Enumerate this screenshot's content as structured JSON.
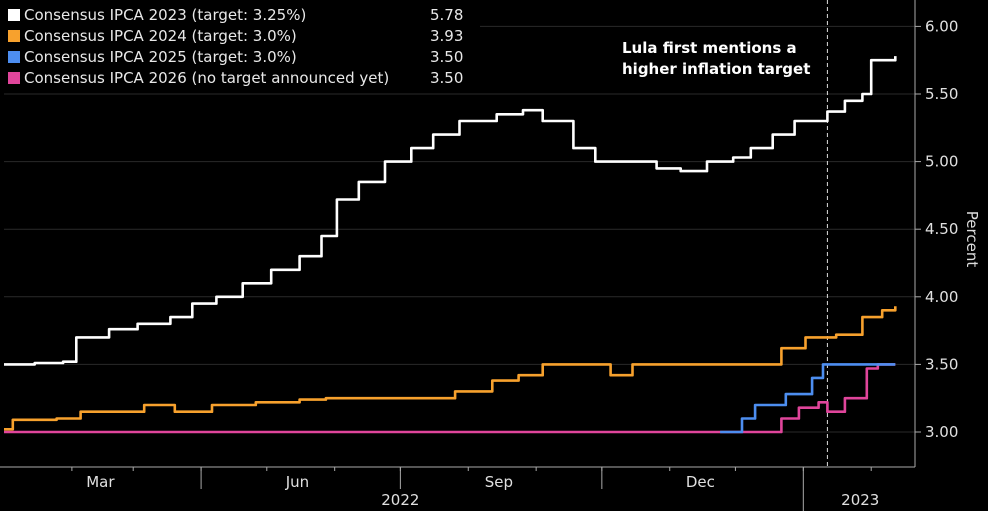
{
  "chart_data": {
    "type": "line",
    "ylabel": "Percent",
    "ylim": [
      2.75,
      6.2
    ],
    "y_ticks": [
      "3.00",
      "3.50",
      "4.00",
      "4.50",
      "5.00",
      "5.50",
      "6.00"
    ],
    "x_ticks": [
      "Mar",
      "Jun",
      "Sep",
      "Dec"
    ],
    "year_labels": [
      "2022",
      "2023"
    ],
    "annotation": "Lula first mentions a\nhigher inflation target",
    "event_date": "2023-01-12",
    "legend_position": "top-left",
    "series": [
      {
        "name": "Consensus IPCA 2023 (target: 3.25%)",
        "last": "5.78",
        "color": "#ffffff",
        "points": [
          [
            "2022-01-01",
            3.5
          ],
          [
            "2022-01-15",
            3.51
          ],
          [
            "2022-01-28",
            3.52
          ],
          [
            "2022-02-03",
            3.7
          ],
          [
            "2022-02-18",
            3.76
          ],
          [
            "2022-03-03",
            3.8
          ],
          [
            "2022-03-18",
            3.85
          ],
          [
            "2022-03-28",
            3.95
          ],
          [
            "2022-04-08",
            4.0
          ],
          [
            "2022-04-20",
            4.1
          ],
          [
            "2022-05-03",
            4.2
          ],
          [
            "2022-05-16",
            4.3
          ],
          [
            "2022-05-26",
            4.45
          ],
          [
            "2022-06-02",
            4.72
          ],
          [
            "2022-06-12",
            4.85
          ],
          [
            "2022-06-24",
            5.0
          ],
          [
            "2022-07-06",
            5.1
          ],
          [
            "2022-07-16",
            5.2
          ],
          [
            "2022-07-28",
            5.3
          ],
          [
            "2022-08-14",
            5.35
          ],
          [
            "2022-08-26",
            5.38
          ],
          [
            "2022-09-04",
            5.3
          ],
          [
            "2022-09-18",
            5.1
          ],
          [
            "2022-09-28",
            5.0
          ],
          [
            "2022-10-14",
            5.0
          ],
          [
            "2022-10-26",
            4.95
          ],
          [
            "2022-11-06",
            4.93
          ],
          [
            "2022-11-18",
            5.0
          ],
          [
            "2022-11-30",
            5.03
          ],
          [
            "2022-12-08",
            5.1
          ],
          [
            "2022-12-18",
            5.2
          ],
          [
            "2022-12-28",
            5.3
          ],
          [
            "2023-01-12",
            5.37
          ],
          [
            "2023-01-20",
            5.45
          ],
          [
            "2023-01-28",
            5.5
          ],
          [
            "2023-02-01",
            5.75
          ],
          [
            "2023-02-12",
            5.78
          ]
        ]
      },
      {
        "name": "Consensus IPCA 2024 (target: 3.0%)",
        "last": "3.93",
        "color": "#f7a12d",
        "points": [
          [
            "2022-01-01",
            3.02
          ],
          [
            "2022-01-05",
            3.09
          ],
          [
            "2022-01-25",
            3.1
          ],
          [
            "2022-02-05",
            3.15
          ],
          [
            "2022-02-18",
            3.15
          ],
          [
            "2022-03-06",
            3.2
          ],
          [
            "2022-03-20",
            3.15
          ],
          [
            "2022-04-06",
            3.2
          ],
          [
            "2022-04-26",
            3.22
          ],
          [
            "2022-05-16",
            3.24
          ],
          [
            "2022-05-28",
            3.25
          ],
          [
            "2022-07-10",
            3.25
          ],
          [
            "2022-07-26",
            3.3
          ],
          [
            "2022-08-12",
            3.38
          ],
          [
            "2022-08-24",
            3.42
          ],
          [
            "2022-09-04",
            3.5
          ],
          [
            "2022-09-28",
            3.5
          ],
          [
            "2022-10-05",
            3.42
          ],
          [
            "2022-10-15",
            3.5
          ],
          [
            "2022-12-12",
            3.5
          ],
          [
            "2022-12-22",
            3.62
          ],
          [
            "2023-01-02",
            3.7
          ],
          [
            "2023-01-16",
            3.72
          ],
          [
            "2023-01-28",
            3.85
          ],
          [
            "2023-02-06",
            3.9
          ],
          [
            "2023-02-12",
            3.93
          ]
        ]
      },
      {
        "name": "Consensus IPCA 2025 (target: 3.0%)",
        "last": "3.50",
        "color": "#4d8ef0",
        "points": [
          [
            "2022-11-24",
            3.0
          ],
          [
            "2022-12-04",
            3.1
          ],
          [
            "2022-12-10",
            3.2
          ],
          [
            "2022-12-24",
            3.28
          ],
          [
            "2023-01-05",
            3.4
          ],
          [
            "2023-01-10",
            3.5
          ],
          [
            "2023-02-12",
            3.5
          ]
        ]
      },
      {
        "name": "Consensus IPCA 2026 (no target announced yet)",
        "last": "3.50",
        "color": "#e0459b",
        "points": [
          [
            "2022-01-01",
            3.0
          ],
          [
            "2022-12-10",
            3.0
          ],
          [
            "2022-12-22",
            3.1
          ],
          [
            "2022-12-30",
            3.18
          ],
          [
            "2023-01-08",
            3.22
          ],
          [
            "2023-01-12",
            3.15
          ],
          [
            "2023-01-20",
            3.25
          ],
          [
            "2023-01-26",
            3.25
          ],
          [
            "2023-01-30",
            3.47
          ],
          [
            "2023-02-04",
            3.5
          ],
          [
            "2023-02-12",
            3.5
          ]
        ]
      }
    ]
  }
}
